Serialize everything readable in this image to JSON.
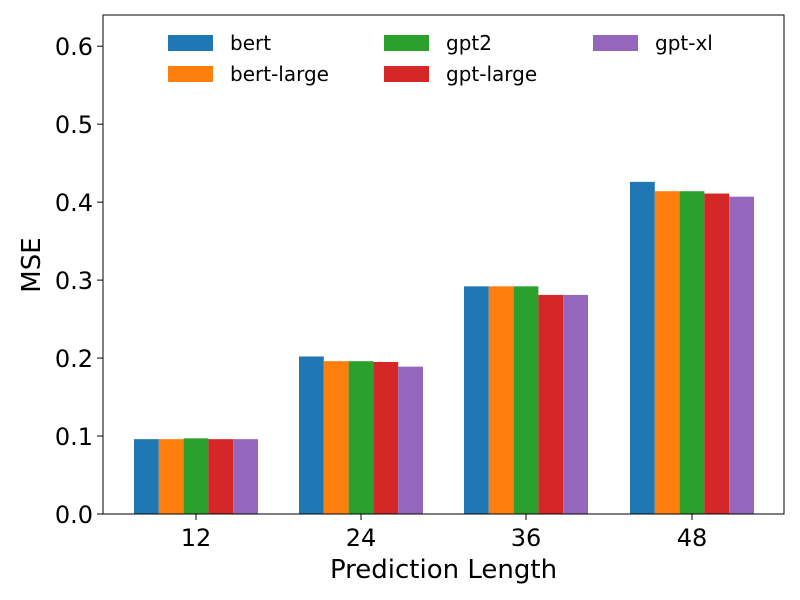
{
  "chart_data": {
    "type": "bar",
    "title": "",
    "xlabel": "Prediction Length",
    "ylabel": "MSE",
    "categories": [
      "12",
      "24",
      "36",
      "48"
    ],
    "ylim": [
      0,
      0.64
    ],
    "yticks": [
      0.0,
      0.1,
      0.2,
      0.3,
      0.4,
      0.5,
      0.6
    ],
    "ytick_labels": [
      "0.0",
      "0.1",
      "0.2",
      "0.3",
      "0.4",
      "0.5",
      "0.6"
    ],
    "grid": false,
    "legend_position": "top",
    "series": [
      {
        "name": "bert",
        "color": "#1f77b4",
        "values": [
          0.096,
          0.202,
          0.292,
          0.426
        ]
      },
      {
        "name": "bert-large",
        "color": "#ff7f0e",
        "values": [
          0.096,
          0.196,
          0.292,
          0.414
        ]
      },
      {
        "name": "gpt2",
        "color": "#2ca02c",
        "values": [
          0.097,
          0.196,
          0.292,
          0.414
        ]
      },
      {
        "name": "gpt-large",
        "color": "#d62728",
        "values": [
          0.096,
          0.195,
          0.281,
          0.411
        ]
      },
      {
        "name": "gpt-xl",
        "color": "#9467bd",
        "values": [
          0.096,
          0.189,
          0.281,
          0.407
        ]
      }
    ]
  }
}
